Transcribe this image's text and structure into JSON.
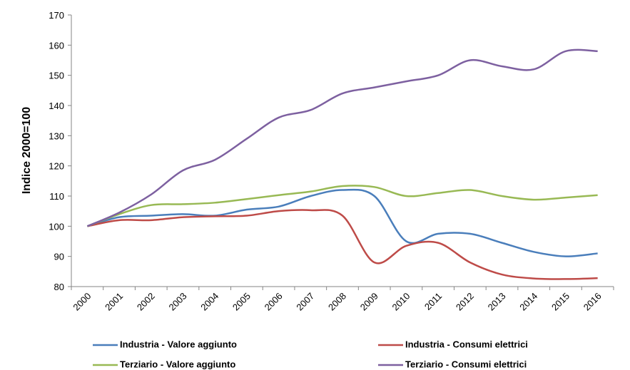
{
  "chart_data": {
    "type": "line",
    "y_label": "Indice 2000=100",
    "categories": [
      "2000",
      "2001",
      "2002",
      "2003",
      "2004",
      "2005",
      "2006",
      "2007",
      "2008",
      "2009",
      "2010",
      "2011",
      "2012",
      "2013",
      "2014",
      "2015",
      "2016"
    ],
    "ylim": [
      80,
      170
    ],
    "yticks": [
      80,
      90,
      100,
      110,
      120,
      130,
      140,
      150,
      160,
      170
    ],
    "grid": false,
    "legend": "bottom",
    "series": [
      {
        "name": "Industria - Valore aggiunto",
        "color": "#4a7ebb",
        "values": [
          100,
          103,
          103.5,
          104,
          103.5,
          105.5,
          106.5,
          110,
          112,
          110,
          95,
          97.5,
          97.5,
          94.5,
          91.5,
          90,
          91
        ]
      },
      {
        "name": "Industria - Consumi elettrici",
        "color": "#be4b48",
        "values": [
          100,
          102,
          102,
          103,
          103.3,
          103.5,
          105,
          105.3,
          103.5,
          88,
          93.5,
          94.5,
          88,
          84,
          82.7,
          82.5,
          82.8
        ]
      },
      {
        "name": "Terziario - Valore aggiunto",
        "color": "#98b954",
        "values": [
          100,
          104,
          107,
          107.3,
          107.8,
          109,
          110.3,
          111.5,
          113.3,
          113,
          110,
          111,
          112,
          110,
          108.8,
          109.5,
          110.3
        ]
      },
      {
        "name": "Terziario - Consumi elettrici",
        "color": "#7d60a0",
        "values": [
          100,
          104.5,
          110.5,
          118.5,
          122,
          129,
          136,
          138.5,
          144,
          146,
          148,
          150,
          155,
          153,
          152,
          158,
          158
        ]
      }
    ]
  }
}
